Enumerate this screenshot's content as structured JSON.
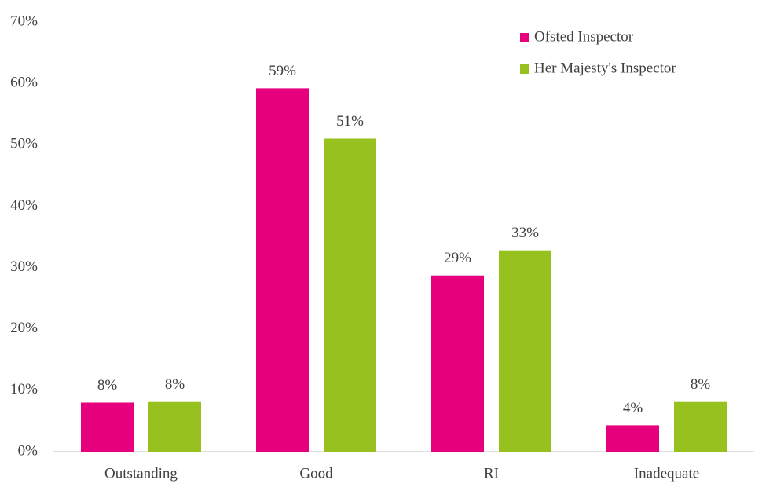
{
  "chart_data": {
    "type": "bar",
    "categories": [
      "Outstanding",
      "Good",
      "RI",
      "Inadequate"
    ],
    "series": [
      {
        "name": "Ofsted Inspector",
        "color": "#e6007e",
        "values": [
          8,
          59.2,
          28.7,
          4.3
        ],
        "value_labels": [
          "8%",
          "59%",
          "29%",
          "4%"
        ]
      },
      {
        "name": "Her Majesty's Inspector",
        "color": "#97c11f",
        "values": [
          8.1,
          51,
          32.8,
          8.1
        ],
        "value_labels": [
          "8%",
          "51%",
          "33%",
          "8%"
        ]
      }
    ],
    "ylim": [
      0,
      70
    ],
    "yticks": [
      {
        "value": 0,
        "label": "0%"
      },
      {
        "value": 10,
        "label": "10%"
      },
      {
        "value": 20,
        "label": "20%"
      },
      {
        "value": 30,
        "label": "30%"
      },
      {
        "value": 40,
        "label": "40%"
      },
      {
        "value": 50,
        "label": "50%"
      },
      {
        "value": 60,
        "label": "60%"
      },
      {
        "value": 70,
        "label": "70%"
      }
    ],
    "grid": false,
    "legend": "top-right"
  }
}
